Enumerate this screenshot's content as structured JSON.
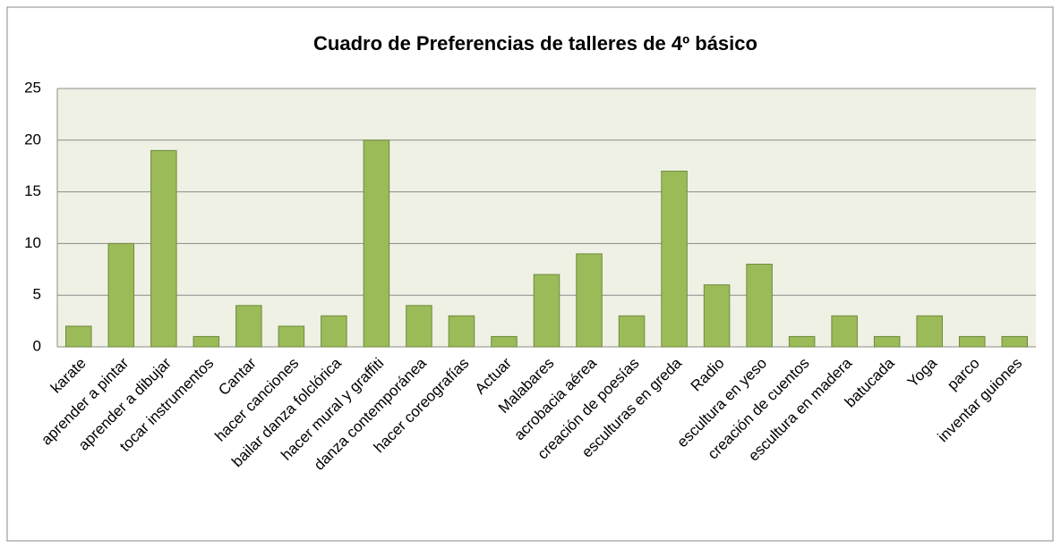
{
  "chart_data": {
    "type": "bar",
    "title": "Cuadro de Preferencias de talleres de 4º básico",
    "categories": [
      "karate",
      "aprender a pintar",
      "aprender a dibujar",
      "tocar instrumentos",
      "Cantar",
      "hacer canciones",
      "bailar danza folclórica",
      "hacer mural y graffiti",
      "danza contemporánea",
      "hacer coreografías",
      "Actuar",
      "Malabares",
      "acrobacia aérea",
      "creación de poesías",
      "esculturas en greda",
      "Radio",
      "escultura en yeso",
      "creación de cuentos",
      "escultura en madera",
      "batucada",
      "Yoga",
      "parco",
      "inventar guiones"
    ],
    "values": [
      2,
      10,
      19,
      1,
      4,
      2,
      3,
      20,
      4,
      3,
      1,
      7,
      9,
      3,
      17,
      6,
      8,
      1,
      3,
      1,
      3,
      1,
      1
    ],
    "color": "#9bbb59",
    "ylim": [
      0,
      25
    ],
    "yticks": [
      0,
      5,
      10,
      15,
      20,
      25
    ],
    "grid": true
  }
}
